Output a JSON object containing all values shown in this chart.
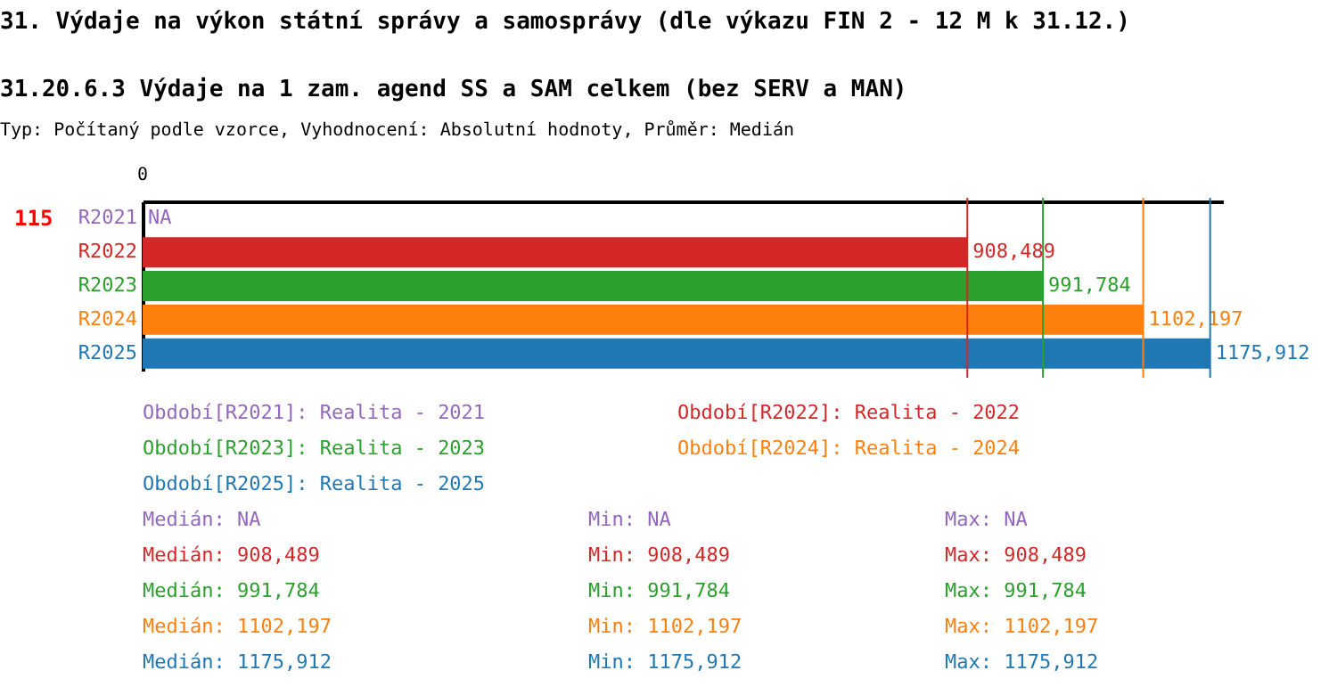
{
  "chart_data": {
    "type": "bar",
    "orientation": "horizontal",
    "title": "31. Výdaje na výkon státní správy a samosprávy (dle výkazu FIN 2 - 12 M k 31.12.)",
    "subtitle": "31.20.6.3 Výdaje na 1 zam. agend SS a SAM celkem (bez SERV a MAN)\nTyp: Počítaný podle vzorce, Vyhodnocení: Absolutní hodnoty, Průměr: Medián",
    "categories": [
      "R2021",
      "R2022",
      "R2023",
      "R2024",
      "R2025"
    ],
    "values": [
      null,
      908489,
      991784,
      1102197,
      1175912
    ],
    "value_labels": [
      "NA",
      "908,489",
      "991,784",
      "1102,197",
      "1175,912"
    ],
    "colors": [
      "#9467bd",
      "#d62728",
      "#2ca02c",
      "#ff7f0e",
      "#1f77b4"
    ],
    "xlim": [
      0,
      1190000
    ],
    "ref_lines": [
      {
        "axis": "x",
        "value": 908489,
        "color": "#d62728"
      },
      {
        "axis": "x",
        "value": 991784,
        "color": "#2ca02c"
      },
      {
        "axis": "x",
        "value": 1102197,
        "color": "#ff7f0e"
      },
      {
        "axis": "x",
        "value": 1175912,
        "color": "#1f77b4"
      }
    ],
    "annotations": [
      "115",
      "0",
      "Období[R2021]: Realita - 2021",
      "Období[R2022]: Realita - 2022",
      "Období[R2023]: Realita - 2023",
      "Období[R2024]: Realita - 2024",
      "Období[R2025]: Realita - 2025",
      "Medián: NA",
      "Min: NA",
      "Max: NA",
      "Medián: 908,489",
      "Min: 908,489",
      "Max: 908,489",
      "Medián: 991,784",
      "Min: 991,784",
      "Max: 991,784",
      "Medián: 1102,197",
      "Min: 1102,197",
      "Max: 1102,197",
      "Medián: 1175,912",
      "Min: 1175,912",
      "Max: 1175,912"
    ]
  }
}
